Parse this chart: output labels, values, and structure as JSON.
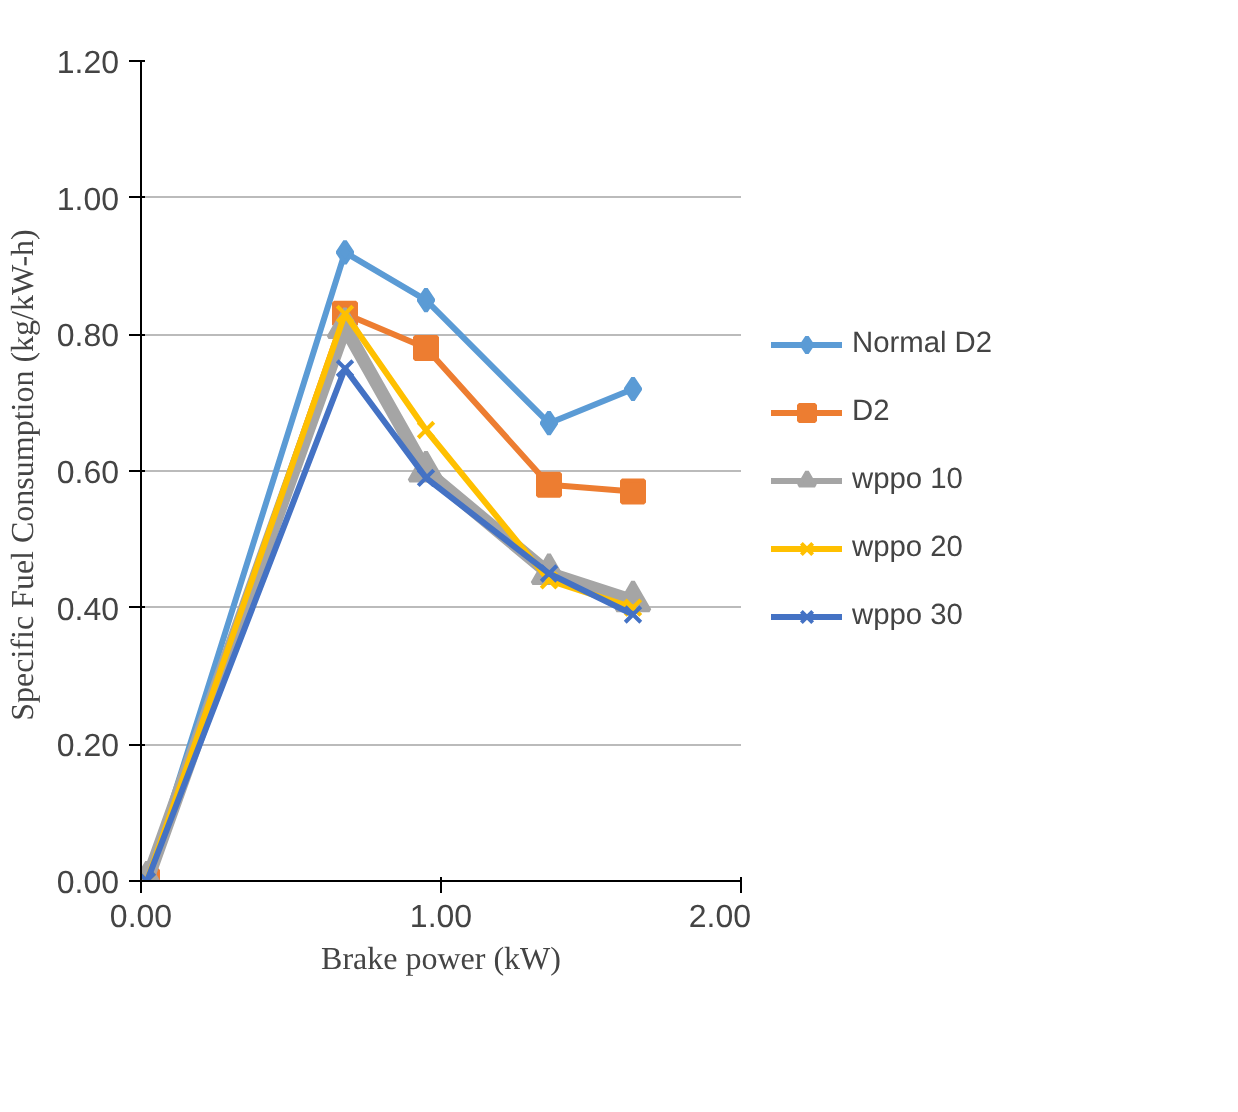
{
  "chart_data": {
    "type": "line",
    "xlabel": "Brake power (kW)",
    "ylabel": "Specific Fuel Consumption  (kg/kW-h)",
    "x": [
      0.02,
      0.68,
      0.95,
      1.36,
      1.64
    ],
    "series": [
      {
        "name": "Normal D2",
        "color": "#5b9bd5",
        "marker": "diamond",
        "values": [
          0,
          0.92,
          0.85,
          0.67,
          0.72
        ]
      },
      {
        "name": "D2",
        "color": "#ed7d31",
        "marker": "square",
        "values": [
          0,
          0.83,
          0.78,
          0.58,
          0.57
        ]
      },
      {
        "name": "wppo 10",
        "color": "#a5a5a5",
        "marker": "triangle",
        "values": [
          0,
          0.81,
          0.6,
          0.45,
          0.41
        ]
      },
      {
        "name": "wppo 20",
        "color": "#ffc000",
        "marker": "cross",
        "values": [
          0,
          0.83,
          0.66,
          0.44,
          0.4
        ]
      },
      {
        "name": "wppo 30",
        "color": "#4472c4",
        "marker": "cross",
        "values": [
          0,
          0.75,
          0.59,
          0.45,
          0.39
        ]
      }
    ],
    "xlim": [
      0,
      2
    ],
    "ylim": [
      0,
      1.2
    ],
    "xticks": [
      {
        "value": 0,
        "label": "0.00"
      },
      {
        "value": 1,
        "label": "1.00"
      },
      {
        "value": 2,
        "label": "2.00"
      }
    ],
    "yticks": [
      {
        "value": 0,
        "label": "0.00"
      },
      {
        "value": 0.2,
        "label": "0.20"
      },
      {
        "value": 0.4,
        "label": "0.40"
      },
      {
        "value": 0.6,
        "label": "0.60"
      },
      {
        "value": 0.8,
        "label": "0.80"
      },
      {
        "value": 1.0,
        "label": "1.00"
      },
      {
        "value": 1.2,
        "label": "1.20"
      }
    ],
    "grid": "y",
    "legend": "right"
  }
}
